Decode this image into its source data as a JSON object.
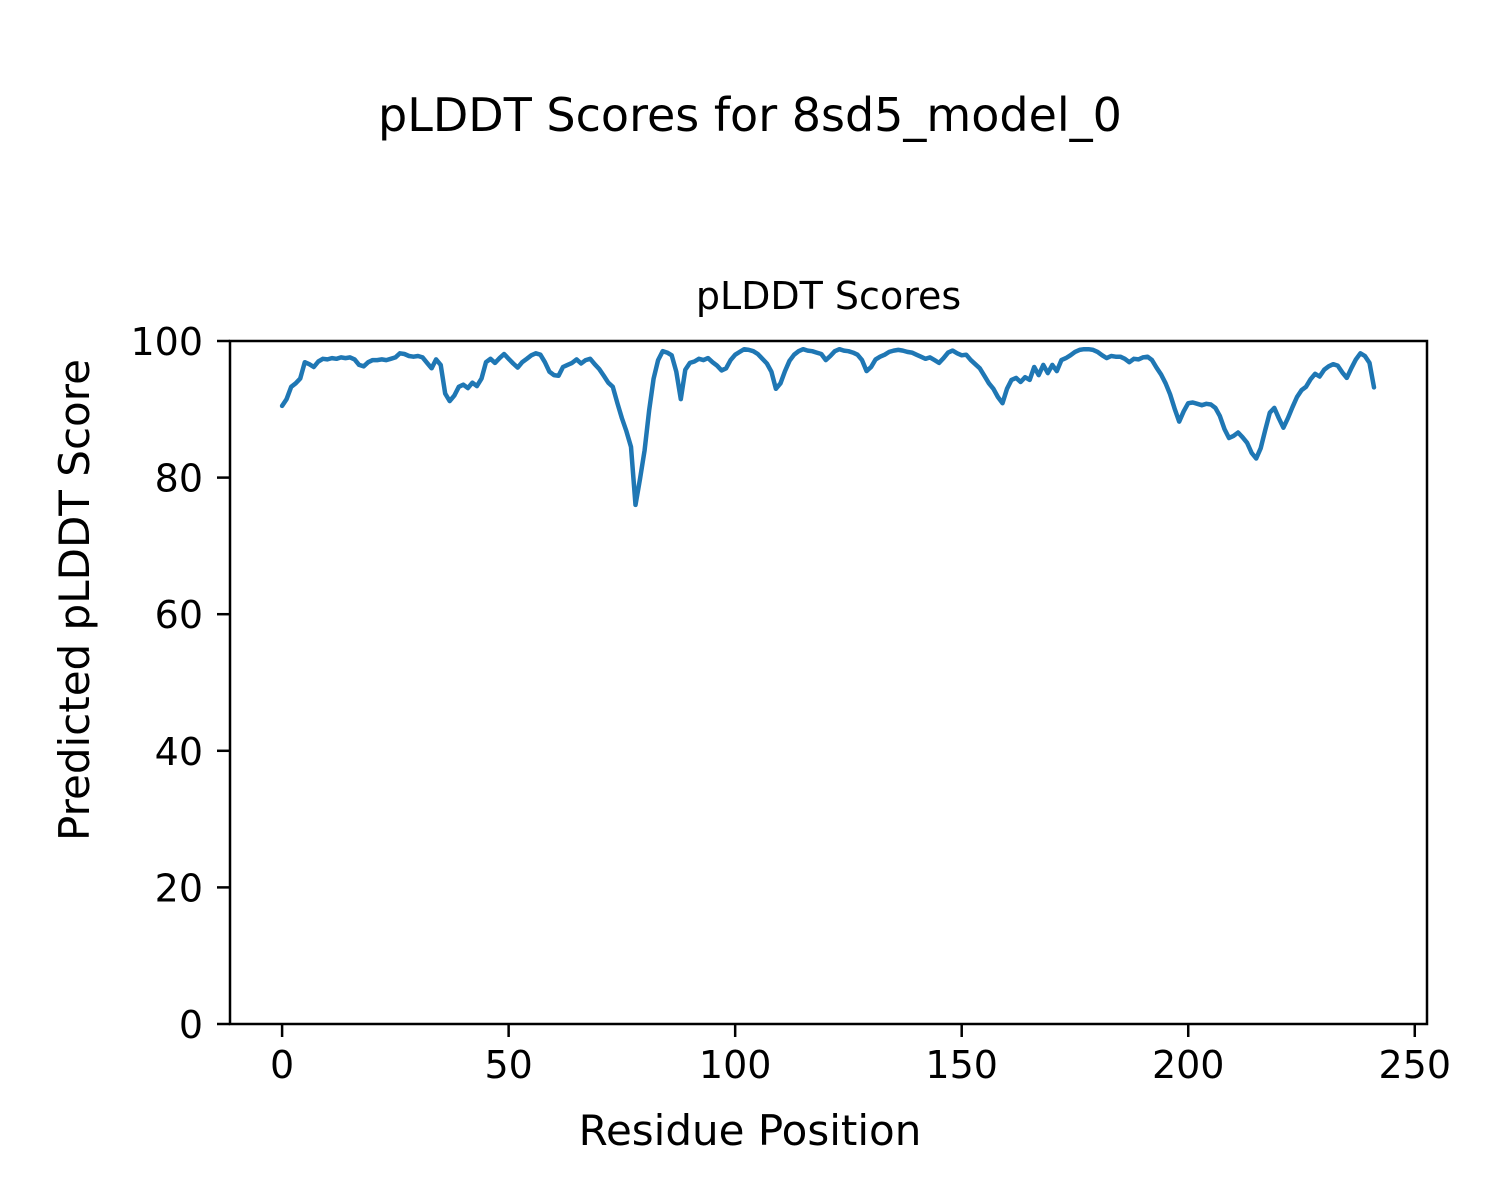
{
  "chart_data": {
    "type": "line",
    "suptitle": "pLDDT Scores for 8sd5_model_0",
    "title": "pLDDT Scores",
    "xlabel": "Residue Position",
    "ylabel": "Predicted pLDDT Score",
    "x_ticks": [
      0,
      50,
      100,
      150,
      200,
      250
    ],
    "y_ticks": [
      0,
      20,
      40,
      60,
      80,
      100
    ],
    "xlim": [
      -11.5,
      252.7
    ],
    "ylim": [
      0,
      100
    ],
    "grid": false,
    "legend": "none",
    "line_color": "#1f77b4",
    "series": [
      {
        "name": "pLDDT",
        "x_start": 0,
        "x_step": 1,
        "values": [
          90.5,
          91.5,
          93.3,
          93.8,
          94.5,
          96.9,
          96.6,
          96.2,
          97.0,
          97.4,
          97.3,
          97.5,
          97.4,
          97.6,
          97.5,
          97.6,
          97.3,
          96.5,
          96.3,
          96.9,
          97.2,
          97.2,
          97.3,
          97.2,
          97.4,
          97.6,
          98.2,
          98.1,
          97.8,
          97.7,
          97.8,
          97.6,
          96.8,
          96.0,
          97.3,
          96.5,
          92.3,
          91.2,
          92.0,
          93.3,
          93.6,
          93.1,
          93.9,
          93.4,
          94.5,
          96.9,
          97.4,
          96.8,
          97.5,
          98.1,
          97.4,
          96.7,
          96.1,
          96.9,
          97.4,
          97.9,
          98.2,
          98.0,
          96.9,
          95.5,
          95.0,
          94.9,
          96.2,
          96.5,
          96.8,
          97.3,
          96.7,
          97.2,
          97.4,
          96.6,
          95.9,
          94.9,
          93.9,
          93.3,
          90.9,
          88.7,
          86.8,
          84.5,
          76.0,
          79.8,
          84.0,
          89.8,
          94.5,
          97.2,
          98.5,
          98.3,
          97.9,
          95.5,
          91.5,
          95.8,
          96.8,
          97.0,
          97.4,
          97.2,
          97.5,
          96.9,
          96.4,
          95.7,
          96.0,
          97.2,
          98.0,
          98.4,
          98.8,
          98.7,
          98.5,
          98.1,
          97.4,
          96.7,
          95.5,
          93.0,
          93.8,
          95.6,
          97.1,
          98.0,
          98.5,
          98.8,
          98.6,
          98.5,
          98.3,
          98.1,
          97.2,
          97.8,
          98.5,
          98.8,
          98.6,
          98.5,
          98.3,
          98.0,
          97.2,
          95.6,
          96.2,
          97.3,
          97.7,
          98.0,
          98.4,
          98.6,
          98.7,
          98.6,
          98.4,
          98.3,
          98.0,
          97.7,
          97.4,
          97.6,
          97.2,
          96.8,
          97.5,
          98.3,
          98.6,
          98.2,
          97.9,
          98.0,
          97.2,
          96.6,
          96.0,
          94.9,
          93.8,
          93.0,
          91.8,
          90.9,
          93.0,
          94.3,
          94.6,
          94.0,
          94.7,
          94.3,
          96.2,
          95.0,
          96.5,
          95.3,
          96.5,
          95.6,
          97.2,
          97.5,
          97.9,
          98.4,
          98.7,
          98.8,
          98.8,
          98.7,
          98.4,
          97.9,
          97.5,
          97.8,
          97.7,
          97.7,
          97.4,
          96.9,
          97.4,
          97.3,
          97.6,
          97.7,
          97.2,
          96.1,
          95.1,
          93.8,
          92.2,
          90.1,
          88.2,
          89.7,
          90.9,
          91.0,
          90.8,
          90.6,
          90.8,
          90.7,
          90.2,
          89.0,
          87.1,
          85.8,
          86.1,
          86.6,
          85.9,
          85.1,
          83.6,
          82.8,
          84.3,
          87.0,
          89.5,
          90.2,
          88.7,
          87.3,
          88.7,
          90.3,
          91.8,
          92.8,
          93.3,
          94.4,
          95.2,
          94.8,
          95.8,
          96.3,
          96.6,
          96.4,
          95.4,
          94.6,
          96.0,
          97.3,
          98.2,
          97.8,
          96.8,
          93.2
        ]
      }
    ]
  }
}
